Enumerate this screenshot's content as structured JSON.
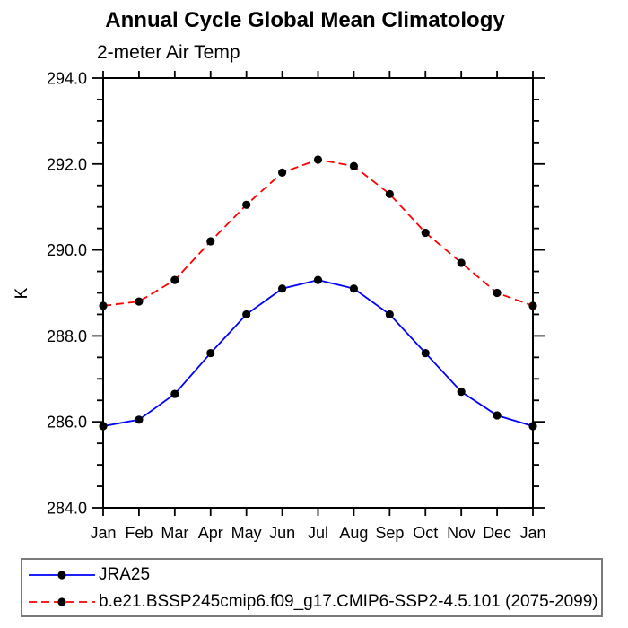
{
  "page": {
    "background_color": "#ffffff",
    "foreground_color": "#000000",
    "legend_border_color": "#7a7a7a"
  },
  "chart_data": {
    "type": "line",
    "title": "Annual Cycle Global Mean Climatology",
    "subtitle": "2-meter Air Temp",
    "ylabel": "K",
    "xlabel": "",
    "categories": [
      "Jan",
      "Feb",
      "Mar",
      "Apr",
      "May",
      "Jun",
      "Jul",
      "Aug",
      "Sep",
      "Oct",
      "Nov",
      "Dec",
      "Jan"
    ],
    "ylim": [
      284.0,
      294.0
    ],
    "ytick_major_interval": 2.0,
    "ytick_minor_interval": 0.5,
    "ytick_labels": [
      "284.0",
      "286.0",
      "288.0",
      "290.0",
      "292.0",
      "294.0"
    ],
    "grid": false,
    "frame": "box-with-outward-ticks",
    "legend_position": "bottom-left-box",
    "series": [
      {
        "name": "JRA25",
        "color": "#0000ff",
        "line_style": "solid",
        "marker": "filled-circle",
        "marker_color": "#000000",
        "values": [
          285.9,
          286.05,
          286.65,
          287.6,
          288.5,
          289.1,
          289.3,
          289.1,
          288.5,
          287.6,
          286.7,
          286.15,
          285.9
        ]
      },
      {
        "name": "b.e21.BSSP245cmip6.f09_g17.CMIP6-SSP2-4.5.101 (2075-2099)",
        "color": "#ff0000",
        "line_style": "dashed",
        "marker": "filled-circle",
        "marker_color": "#000000",
        "values": [
          288.7,
          288.8,
          289.3,
          290.2,
          291.05,
          291.8,
          292.1,
          291.95,
          291.3,
          290.4,
          289.7,
          289.0,
          288.7
        ]
      }
    ]
  }
}
